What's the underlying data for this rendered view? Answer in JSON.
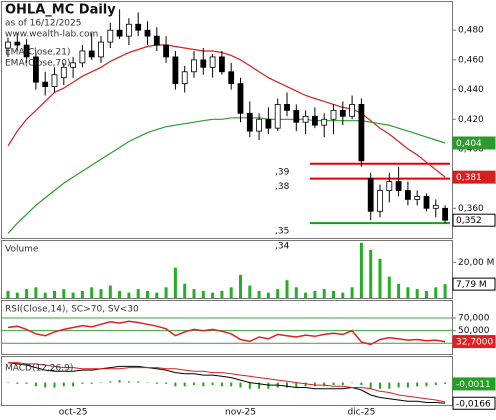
{
  "chart_data": {
    "type": "candlestick",
    "title": "OHLA_MC Daily",
    "subtitle": "as of 16/12/2025",
    "source": "www.wealth-lab.com",
    "categories": [
      null,
      null,
      null,
      null,
      null,
      null,
      null,
      "oct-25",
      null,
      null,
      null,
      null,
      null,
      null,
      null,
      null,
      null,
      null,
      null,
      null,
      null,
      null,
      null,
      null,
      null,
      "nov-25",
      null,
      null,
      null,
      null,
      null,
      null,
      null,
      null,
      null,
      null,
      null,
      null,
      "dic-25",
      null,
      null,
      null,
      null,
      null,
      null,
      null,
      null,
      null
    ],
    "open": [
      0.468,
      0.472,
      0.47,
      0.462,
      0.445,
      0.442,
      0.448,
      0.455,
      0.458,
      0.466,
      0.462,
      0.472,
      0.48,
      0.476,
      0.484,
      0.48,
      0.476,
      0.47,
      0.462,
      0.444,
      0.452,
      0.46,
      0.455,
      0.462,
      0.452,
      0.444,
      0.424,
      0.412,
      0.42,
      0.414,
      0.43,
      0.426,
      0.418,
      0.422,
      0.416,
      0.42,
      0.426,
      0.422,
      0.43,
      0.38,
      0.358,
      0.372,
      0.378,
      0.372,
      0.366,
      0.368,
      0.36,
      0.36
    ],
    "high": [
      0.475,
      0.478,
      0.474,
      0.465,
      0.452,
      0.455,
      0.458,
      0.462,
      0.47,
      0.478,
      0.476,
      0.485,
      0.494,
      0.488,
      0.492,
      0.486,
      0.482,
      0.476,
      0.466,
      0.456,
      0.466,
      0.468,
      0.464,
      0.466,
      0.458,
      0.448,
      0.432,
      0.424,
      0.428,
      0.434,
      0.438,
      0.43,
      0.426,
      0.428,
      0.424,
      0.43,
      0.432,
      0.436,
      0.434,
      0.384,
      0.376,
      0.384,
      0.388,
      0.378,
      0.372,
      0.37,
      0.366,
      0.362
    ],
    "low": [
      0.462,
      0.466,
      0.458,
      0.44,
      0.436,
      0.438,
      0.443,
      0.448,
      0.455,
      0.46,
      0.458,
      0.468,
      0.474,
      0.47,
      0.476,
      0.47,
      0.466,
      0.458,
      0.44,
      0.438,
      0.448,
      0.45,
      0.448,
      0.45,
      0.44,
      0.418,
      0.408,
      0.406,
      0.41,
      0.412,
      0.422,
      0.412,
      0.41,
      0.414,
      0.408,
      0.41,
      0.416,
      0.42,
      0.388,
      0.352,
      0.354,
      0.364,
      0.368,
      0.362,
      0.362,
      0.358,
      0.354,
      0.35
    ],
    "close": [
      0.472,
      0.47,
      0.462,
      0.445,
      0.442,
      0.45,
      0.455,
      0.458,
      0.466,
      0.462,
      0.472,
      0.48,
      0.476,
      0.484,
      0.48,
      0.476,
      0.47,
      0.462,
      0.444,
      0.452,
      0.46,
      0.455,
      0.462,
      0.452,
      0.444,
      0.424,
      0.412,
      0.42,
      0.414,
      0.43,
      0.426,
      0.418,
      0.422,
      0.416,
      0.42,
      0.426,
      0.422,
      0.43,
      0.392,
      0.358,
      0.372,
      0.378,
      0.372,
      0.366,
      0.368,
      0.36,
      0.362,
      0.352
    ],
    "close_label": "0,352",
    "ylim": [
      0.34,
      0.499
    ],
    "yticks": [
      {
        "value": 0.48,
        "label": "0,480"
      },
      {
        "value": 0.46,
        "label": "0,460"
      },
      {
        "value": 0.44,
        "label": "0,440"
      },
      {
        "value": 0.42,
        "label": "0,420"
      },
      {
        "value": 0.4,
        "label": "0,400"
      },
      {
        "value": 0.38,
        "label": "0,380"
      },
      {
        "value": 0.36,
        "label": "0,360"
      }
    ],
    "overlays": [
      {
        "name": "EMA(Close,21)",
        "color": "#d62020",
        "last_label": "0,381",
        "values": [
          0.402,
          0.412,
          0.42,
          0.426,
          0.432,
          0.438,
          0.441,
          0.445,
          0.449,
          0.452,
          0.455,
          0.459,
          0.462,
          0.465,
          0.467,
          0.469,
          0.47,
          0.47,
          0.469,
          0.468,
          0.467,
          0.466,
          0.466,
          0.465,
          0.463,
          0.46,
          0.456,
          0.452,
          0.448,
          0.445,
          0.442,
          0.439,
          0.436,
          0.434,
          0.432,
          0.43,
          0.428,
          0.427,
          0.424,
          0.419,
          0.414,
          0.41,
          0.405,
          0.4,
          0.396,
          0.391,
          0.386,
          0.381
        ]
      },
      {
        "name": "EMA(Close,70)",
        "color": "#2e9a2e",
        "last_label": "0,404",
        "values": [
          0.343,
          0.35,
          0.356,
          0.362,
          0.367,
          0.372,
          0.377,
          0.381,
          0.385,
          0.389,
          0.393,
          0.397,
          0.401,
          0.405,
          0.408,
          0.411,
          0.413,
          0.415,
          0.416,
          0.417,
          0.418,
          0.419,
          0.42,
          0.42,
          0.421,
          0.421,
          0.421,
          0.421,
          0.42,
          0.42,
          0.42,
          0.42,
          0.42,
          0.419,
          0.419,
          0.419,
          0.419,
          0.419,
          0.419,
          0.418,
          0.417,
          0.416,
          0.414,
          0.412,
          0.41,
          0.408,
          0.406,
          0.404
        ]
      }
    ],
    "levels": [
      {
        "label": ",39",
        "value": 0.39,
        "color": "#e00000"
      },
      {
        "label": ",38",
        "value": 0.38,
        "color": "#e00000"
      },
      {
        "label": ",35",
        "value": 0.35,
        "color": "#11a011"
      },
      {
        "label": ",34",
        "value": 0.34
      }
    ],
    "volume": {
      "name": "Volume",
      "color": "#22b022",
      "last_label": "7,79 M",
      "ylim": [
        0,
        32000000
      ],
      "yticks": [
        {
          "value": 20000000,
          "label": "20,00 M"
        }
      ],
      "values": [
        4000000,
        3000000,
        5000000,
        6000000,
        3000000,
        4000000,
        5000000,
        3000000,
        4000000,
        6000000,
        5000000,
        7000000,
        4000000,
        3000000,
        5000000,
        4000000,
        3000000,
        6000000,
        17000000,
        8000000,
        5000000,
        4000000,
        3000000,
        4000000,
        6000000,
        13000000,
        7000000,
        4000000,
        3000000,
        5000000,
        10000000,
        6000000,
        3000000,
        4000000,
        5000000,
        4000000,
        3000000,
        6000000,
        31000000,
        27000000,
        22000000,
        12000000,
        8000000,
        6000000,
        5000000,
        4000000,
        6000000,
        7790000
      ]
    },
    "rsi": {
      "name": "RSI(Close,14), SC>70, SV<30",
      "color": "#e02020",
      "last_label": "32,7000",
      "ylim": [
        13,
        97
      ],
      "yticks": [
        {
          "value": 70,
          "label": "70,000"
        },
        {
          "value": 50,
          "label": "50,000"
        },
        {
          "value": 30,
          "label": "30,000"
        }
      ],
      "values": [
        55,
        57,
        52,
        45,
        42,
        48,
        52,
        55,
        58,
        56,
        60,
        64,
        62,
        65,
        63,
        60,
        57,
        53,
        42,
        48,
        52,
        50,
        52,
        49,
        45,
        36,
        33,
        40,
        37,
        44,
        42,
        40,
        43,
        41,
        44,
        46,
        44,
        50,
        32,
        28,
        36,
        39,
        37,
        35,
        36,
        34,
        35,
        32.7
      ]
    },
    "macd": {
      "name": "MACD(12,26,9)",
      "ylim": [
        -0.018,
        0.0205
      ],
      "series": [
        {
          "color": "#000000",
          "last_label": "-0,0166",
          "values": [
            0.016,
            0.015,
            0.014,
            0.012,
            0.01,
            0.009,
            0.009,
            0.009,
            0.01,
            0.01,
            0.011,
            0.012,
            0.013,
            0.013,
            0.013,
            0.012,
            0.011,
            0.01,
            0.008,
            0.007,
            0.007,
            0.006,
            0.006,
            0.005,
            0.004,
            0.002,
            0.0,
            -0.001,
            -0.002,
            -0.002,
            -0.003,
            -0.004,
            -0.004,
            -0.005,
            -0.005,
            -0.005,
            -0.005,
            -0.004,
            -0.006,
            -0.01,
            -0.012,
            -0.013,
            -0.014,
            -0.015,
            -0.015,
            -0.016,
            -0.016,
            -0.0166
          ]
        },
        {
          "color": "#d62020",
          "values": [
            0.016,
            0.016,
            0.015,
            0.015,
            0.014,
            0.013,
            0.012,
            0.012,
            0.011,
            0.011,
            0.011,
            0.011,
            0.011,
            0.012,
            0.012,
            0.012,
            0.012,
            0.011,
            0.011,
            0.01,
            0.009,
            0.009,
            0.008,
            0.008,
            0.007,
            0.006,
            0.005,
            0.004,
            0.003,
            0.002,
            0.001,
            0.0,
            -0.001,
            -0.002,
            -0.002,
            -0.003,
            -0.003,
            -0.004,
            -0.004,
            -0.005,
            -0.007,
            -0.008,
            -0.01,
            -0.011,
            -0.012,
            -0.013,
            -0.014,
            -0.0155
          ]
        }
      ],
      "histogram": {
        "color": "#22a022",
        "last_label": "-0,0011",
        "values": [
          0,
          -0.001,
          -0.001,
          -0.003,
          -0.004,
          -0.004,
          -0.003,
          -0.003,
          -0.001,
          -0.001,
          0,
          0.001,
          0.002,
          0.001,
          0.001,
          0,
          -0.001,
          -0.001,
          -0.003,
          -0.003,
          -0.002,
          -0.003,
          -0.002,
          -0.003,
          -0.003,
          -0.004,
          -0.005,
          -0.005,
          -0.005,
          -0.004,
          -0.004,
          -0.004,
          -0.003,
          -0.003,
          -0.003,
          -0.002,
          -0.002,
          0,
          -0.002,
          -0.005,
          -0.005,
          -0.005,
          -0.004,
          -0.004,
          -0.003,
          -0.003,
          -0.002,
          -0.0011
        ]
      }
    }
  }
}
